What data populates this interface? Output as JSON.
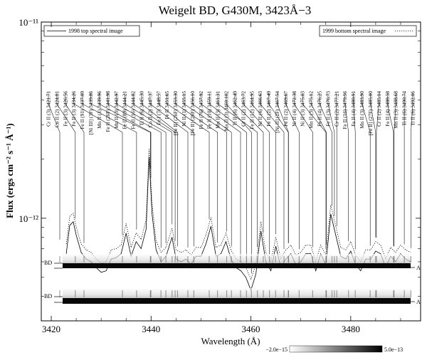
{
  "chart_data": {
    "type": "line",
    "title": "Weigelt BD, G430M, 3423Å−3",
    "xlabel": "Wavelength (Å)",
    "ylabel": "Flux (ergs cm⁻² s⁻¹ Å⁻¹)",
    "xlim": [
      3418,
      3494
    ],
    "ylim_log": [
      3e-13,
      1e-11
    ],
    "y_scale": "log",
    "x_ticks": [
      3420,
      3440,
      3460,
      3480
    ],
    "x_tick_labels": [
      "3420",
      "3440",
      "3460",
      "3480"
    ],
    "y_ticks": [
      1e-12,
      1e-11
    ],
    "y_tick_labels": [
      "10⁻¹²",
      "10⁻¹¹"
    ],
    "legend_left": "1998 top spectral image",
    "legend_right": "1999 bottom spectral image",
    "legend_placement": [
      "top-left",
      "top-right"
    ],
    "image_labels": {
      "bd_top": "BD",
      "bd_bottom": "BD",
      "a_top": "A",
      "a_bottom": "A"
    },
    "colorbar": {
      "min_label": "−2.0e−15",
      "max_label": "5.0e−13"
    },
    "series": [
      {
        "name": "1998 top spectral image",
        "style": "solid",
        "x": [
          3423,
          3423.7,
          3424.4,
          3425,
          3426,
          3427,
          3428,
          3429,
          3430,
          3431,
          3432,
          3433,
          3434,
          3435,
          3436,
          3437,
          3438,
          3439,
          3439.6,
          3440.2,
          3441,
          3442,
          3443,
          3444.2,
          3445,
          3446,
          3447,
          3448,
          3449,
          3450,
          3451,
          3452,
          3453,
          3454,
          3455,
          3456,
          3457,
          3458,
          3459,
          3460,
          3461,
          3462,
          3463,
          3464,
          3465,
          3466,
          3467,
          3468,
          3469,
          3470,
          3471,
          3472,
          3473,
          3474,
          3475,
          3476,
          3477,
          3478,
          3479,
          3480,
          3481,
          3482,
          3483,
          3484,
          3485,
          3486,
          3487,
          3488,
          3489,
          3490,
          3491,
          3492
        ],
        "y": [
          6.6e-13,
          9.2e-13,
          9.6e-13,
          8.2e-13,
          6.7e-13,
          6.2e-13,
          6e-13,
          5.6e-13,
          5.3e-13,
          5.4e-13,
          6.2e-13,
          6.3e-13,
          6.6e-13,
          8.4e-13,
          6.4e-13,
          7.6e-13,
          7e-13,
          8.8e-13,
          2.05e-12,
          1.05e-12,
          6.9e-13,
          6e-13,
          6.4e-13,
          8e-13,
          6.2e-13,
          6e-13,
          6.2e-13,
          5.8e-13,
          6.4e-13,
          6.4e-13,
          7.4e-13,
          9.1e-13,
          6.4e-13,
          6.6e-13,
          7.6e-13,
          6.2e-13,
          5.6e-13,
          5.4e-13,
          5e-13,
          4.3e-13,
          5.2e-13,
          8.6e-13,
          6e-13,
          5.4e-13,
          7.2e-13,
          5.6e-13,
          6.2e-13,
          6.6e-13,
          5.8e-13,
          6e-13,
          6.6e-13,
          6.6e-13,
          5.4e-13,
          6.6e-13,
          5.8e-13,
          1.05e-12,
          8.2e-13,
          6.4e-13,
          6.2e-13,
          6.8e-13,
          5.8e-13,
          5.4e-13,
          6.2e-13,
          6.2e-13,
          6.8e-13,
          6.6e-13,
          5.6e-13,
          6.4e-13,
          6e-13,
          6.6e-13,
          6.2e-13,
          6e-13
        ]
      },
      {
        "name": "1999 bottom spectral image",
        "style": "dotted",
        "x": [
          3423,
          3423.7,
          3424.4,
          3425,
          3426,
          3427,
          3428,
          3429,
          3430,
          3431,
          3432,
          3433,
          3434,
          3435,
          3436,
          3437,
          3438,
          3439,
          3439.6,
          3440.2,
          3441,
          3442,
          3443,
          3444.2,
          3445,
          3446,
          3447,
          3448,
          3449,
          3450,
          3451,
          3452,
          3453,
          3454,
          3455,
          3456,
          3457,
          3458,
          3459,
          3460,
          3461,
          3462,
          3463,
          3464,
          3465,
          3466,
          3467,
          3468,
          3469,
          3470,
          3471,
          3472,
          3473,
          3474,
          3475,
          3476,
          3477,
          3478,
          3479,
          3480,
          3481,
          3482,
          3483,
          3484,
          3485,
          3486,
          3487,
          3488,
          3489,
          3490,
          3491,
          3492
        ],
        "y": [
          7.4e-13,
          1.02e-12,
          1.06e-12,
          9e-13,
          7.4e-13,
          6.9e-13,
          6.7e-13,
          6.2e-13,
          5.9e-13,
          6e-13,
          6.9e-13,
          7e-13,
          7.3e-13,
          9.4e-13,
          7.1e-13,
          8.4e-13,
          7.8e-13,
          9.8e-13,
          2.25e-12,
          1.18e-12,
          7.7e-13,
          6.7e-13,
          7.1e-13,
          8.9e-13,
          6.9e-13,
          6.7e-13,
          6.9e-13,
          6.5e-13,
          7.1e-13,
          7.1e-13,
          8.2e-13,
          1.01e-12,
          7.1e-13,
          7.3e-13,
          8.4e-13,
          6.9e-13,
          6.2e-13,
          6e-13,
          5.6e-13,
          4.9e-13,
          5.8e-13,
          9.6e-13,
          6.7e-13,
          6e-13,
          8e-13,
          6.2e-13,
          6.9e-13,
          7.3e-13,
          6.5e-13,
          6.7e-13,
          7.3e-13,
          7.3e-13,
          6e-13,
          7.3e-13,
          6.5e-13,
          1.17e-12,
          9.1e-13,
          7.1e-13,
          6.9e-13,
          7.6e-13,
          6.5e-13,
          6e-13,
          6.9e-13,
          6.9e-13,
          7.6e-13,
          7.3e-13,
          6.2e-13,
          7.1e-13,
          6.7e-13,
          7.3e-13,
          6.9e-13,
          6.7e-13
        ]
      }
    ],
    "line_ids": [
      {
        "label": "Cr II (3) 3421.71",
        "wl": 3421.71
      },
      {
        "label": "Co II (2) 3424.81",
        "wl": 3424.81
      },
      {
        "label": "Fe II (3) 3426.56",
        "wl": 3426.56
      },
      {
        "label": "Fe II (3) 3434.26",
        "wl": 3434.26
      },
      {
        "label": "Fe II (91) 3437.09",
        "wl": 3437.09
      },
      {
        "label": "[Ni III] (3F) 3439.86",
        "wl": 3439.86
      },
      {
        "label": "Mn II (1) 3439.96",
        "wl": 3439.96
      },
      {
        "label": "Fe II (26F) 3441.98",
        "wl": 3441.98
      },
      {
        "label": "Mn II (3) 3442.97",
        "wl": 3442.97
      },
      {
        "label": "Fe II (89) 3444.21",
        "wl": 3444.21
      },
      {
        "label": "Fe II (16) 3444.82",
        "wl": 3444.82
      },
      {
        "label": "Ti II (6) 3445.30",
        "wl": 3445.3
      },
      {
        "label": "Co II (2) 3447.37",
        "wl": 3447.37
      },
      {
        "label": "Fe I (7) 3448.57",
        "wl": 3448.57
      },
      {
        "label": "Fe II 3451.65",
        "wl": 3451.65
      },
      {
        "label": "[Fe II] (26F) 3453.30",
        "wl": 3453.3
      },
      {
        "label": "Ni II (1) 3455.15",
        "wl": 3455.15
      },
      {
        "label": "[Fe II] (26F) 3456.10",
        "wl": 3456.1
      },
      {
        "label": "Fe II (76) 3457.92",
        "wl": 3457.92
      },
      {
        "label": "Fe II (10) 3459.11",
        "wl": 3459.11
      },
      {
        "label": "Mn II (3) 3461.31",
        "wl": 3461.31
      },
      {
        "label": "Mn II (3) 3460.102",
        "wl": 3460.102
      },
      {
        "label": "Ti II (6) 3462.49",
        "wl": 3462.49
      },
      {
        "label": "Cr II (2) 3463.72",
        "wl": 3463.72
      },
      {
        "label": "Fe II (12) 3464.95",
        "wl": 3464.95
      },
      {
        "label": "Ni II (4) 3466.63",
        "wl": 3466.63
      },
      {
        "label": "Fe II (2) 3467.49",
        "wl": 3467.49
      },
      {
        "label": "[Ni II] (2F) 3467.54",
        "wl": 3467.54
      },
      {
        "label": "Fe II (2) 3469.67",
        "wl": 3469.67
      },
      {
        "label": "Ni II (4) 3472.38",
        "wl": 3472.38
      },
      {
        "label": "Ni II (3) 3475.03",
        "wl": 3475.03
      },
      {
        "label": "Mn II (3) 3475.12",
        "wl": 3475.12
      },
      {
        "label": "Fe II (4) 3476.25",
        "wl": 3476.25
      },
      {
        "label": "Fe II (3) 3476.73",
        "wl": 3476.73
      },
      {
        "label": "Cr II (2) 3477.21",
        "wl": 3477.21
      },
      {
        "label": "Fe II (16) 3479.56",
        "wl": 3479.56
      },
      {
        "label": "Fe II (4) 3480.91",
        "wl": 3480.91
      },
      {
        "label": "Mn II (3) 3483.90",
        "wl": 3483.9
      },
      {
        "label": "[Fe II] (27F) 3485.00",
        "wl": 3485.0
      },
      {
        "label": "Cr II (2) 3485.14",
        "wl": 3485.14
      },
      {
        "label": "Fe II (4) 3488.58",
        "wl": 3488.58
      },
      {
        "label": "Mn II (3) 3488.68",
        "wl": 3488.68
      },
      {
        "label": "Ti II (6) 3490.74",
        "wl": 3490.74
      },
      {
        "label": "Ti II (6) 3492.06",
        "wl": 3492.06
      }
    ]
  }
}
